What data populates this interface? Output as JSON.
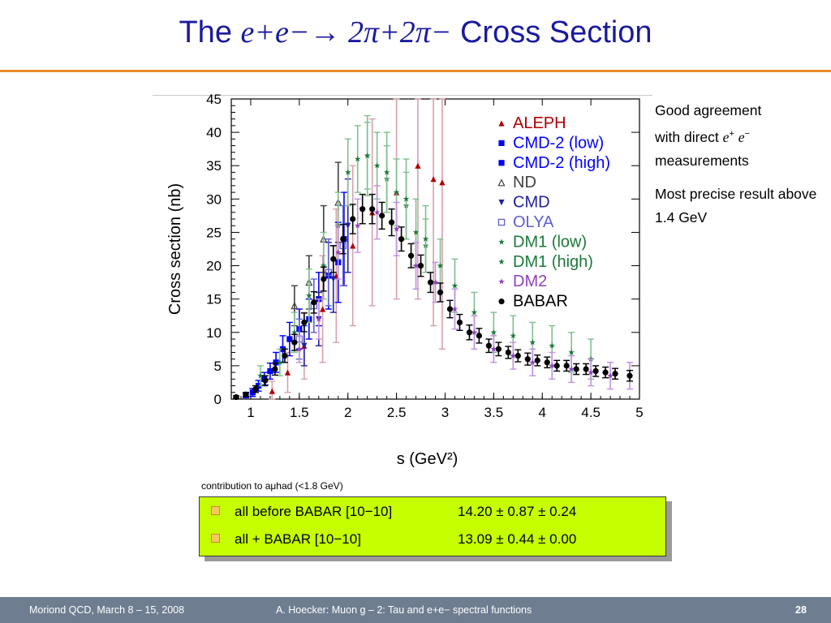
{
  "slide": {
    "title_prefix": "The",
    "title_reaction": "e+e−→ 2π+2π−",
    "title_suffix": "Cross Section",
    "notes": {
      "note1_line1": "Good agreement",
      "note1_line2": "with direct",
      "note1_line3": "measurements",
      "note2": "Most precise result above 1.4 GeV"
    },
    "contribution": {
      "caption": "contribution to aμhad (<1.8 GeV)",
      "rows": [
        {
          "label": "all before BABAR [10−10]",
          "value": "14.20 ± 0.87 ± 0.24"
        },
        {
          "label": "all + BABAR [10−10]",
          "value": "13.09 ± 0.44 ± 0.00"
        }
      ]
    },
    "footer": {
      "left": "Moriond QCD, March 8 – 15, 2008",
      "center": "A. Hoecker: Muon g – 2: Tau and e+e− spectral functions",
      "page": "28"
    },
    "colors": {
      "title": "#1a1a9e",
      "accent_rule": "#e98a2a",
      "box": "#c6ff00",
      "footer_bg": "#6e7d90"
    }
  },
  "chart_data": {
    "type": "scatter",
    "xlabel": "s    (GeV²)",
    "ylabel": "Cross section  (nb)",
    "xlim": [
      0.8,
      5.0
    ],
    "ylim": [
      0,
      45
    ],
    "xticks": [
      "1",
      "1.5",
      "2",
      "2.5",
      "3",
      "3.5",
      "4",
      "4.5",
      "5"
    ],
    "yticks": [
      "0",
      "5",
      "10",
      "15",
      "20",
      "25",
      "30",
      "35",
      "40",
      "45"
    ],
    "legend_position": "top-right",
    "series": [
      {
        "name": "ALEPH",
        "color": "#b00000",
        "marker": "triangle-up",
        "x": [
          1.22,
          1.38,
          1.55,
          1.74,
          1.88,
          2.05,
          2.25,
          2.5,
          2.72,
          2.88,
          2.97
        ],
        "y": [
          1.2,
          4.0,
          8.0,
          13.5,
          18.5,
          23.0,
          28.0,
          31.0,
          35.0,
          33.0,
          32.5
        ],
        "err": [
          1.5,
          3,
          5,
          8,
          10,
          12,
          14,
          16,
          20,
          22,
          25
        ]
      },
      {
        "name": "CMD-2 (low)",
        "color": "#0000ff",
        "marker": "square",
        "x": [
          0.95,
          1.02,
          1.08,
          1.14,
          1.2,
          1.26,
          1.33,
          1.4,
          1.5
        ],
        "y": [
          0.6,
          1.0,
          2.0,
          3.0,
          4.2,
          5.5,
          7.5,
          9.0,
          10.5
        ],
        "err": [
          0.4,
          0.6,
          0.8,
          1.0,
          1.2,
          1.5,
          2,
          2.5,
          3
        ]
      },
      {
        "name": "CMD-2 (high)",
        "color": "#0000ff",
        "marker": "square",
        "x": [
          1.6,
          1.7,
          1.8,
          1.9,
          1.96
        ],
        "y": [
          12.0,
          15.0,
          18.5,
          20.5,
          24.0
        ],
        "err": [
          3,
          4,
          5,
          6,
          7
        ]
      },
      {
        "name": "ND",
        "color": "#404040",
        "marker": "triangle-open",
        "x": [
          1.45,
          1.6,
          1.75,
          1.9
        ],
        "y": [
          14.0,
          17.5,
          24.0,
          29.5
        ],
        "err": [
          3,
          4,
          5,
          6
        ]
      },
      {
        "name": "CMD",
        "color": "#2020a0",
        "marker": "triangle-down",
        "x": [
          1.55,
          1.7,
          1.85,
          2.0
        ],
        "y": [
          8.0,
          12.0,
          18.0,
          26.0
        ],
        "err": [
          3,
          4,
          5,
          7
        ]
      },
      {
        "name": "OLYA",
        "color": "#6060d0",
        "marker": "square-open",
        "x": [
          1.5,
          1.65,
          1.8,
          1.95
        ],
        "y": [
          9.0,
          14.0,
          19.0,
          23.0
        ],
        "err": [
          3,
          4,
          5,
          6
        ]
      },
      {
        "name": "DM1 (low)",
        "color": "#1a7a3a",
        "marker": "star",
        "x": [
          1.1,
          1.3,
          1.45,
          1.6,
          1.75,
          1.9,
          2.0,
          2.1,
          2.2,
          2.3,
          2.4,
          2.5,
          2.6,
          2.7,
          2.8,
          2.95,
          3.1,
          3.3,
          3.5,
          3.7,
          3.9,
          4.1,
          4.3,
          4.5
        ],
        "y": [
          3.5,
          5.5,
          10.0,
          15.5,
          20.0,
          26.0,
          34.0,
          36.0,
          36.5,
          35.0,
          33.0,
          31.0,
          29.0,
          25.0,
          23.0,
          20.0,
          17.0,
          13.0,
          10.0,
          9.5,
          8.5,
          8.0,
          7.0,
          6.0
        ],
        "err": [
          1.5,
          2,
          3,
          4,
          5,
          5,
          5,
          5,
          5,
          5,
          5,
          5,
          5,
          5,
          4,
          4,
          4,
          3,
          3,
          3,
          3,
          3,
          3,
          3
        ]
      },
      {
        "name": "DM1 (high)",
        "color": "#1a7a3a",
        "marker": "star",
        "x": [
          2.2,
          2.4,
          2.6,
          2.8
        ],
        "y": [
          36.5,
          34.0,
          30.0,
          24.0
        ],
        "err": [
          6,
          6,
          6,
          5
        ]
      },
      {
        "name": "DM2",
        "color": "#9040c0",
        "marker": "star",
        "x": [
          1.5,
          1.7,
          1.9,
          2.1,
          2.3,
          2.5,
          2.7,
          2.9,
          3.1,
          3.3,
          3.5,
          3.7,
          3.9,
          4.1,
          4.3,
          4.5,
          4.7,
          4.9
        ],
        "y": [
          7.5,
          12.0,
          22.0,
          26.0,
          28.0,
          25.5,
          20.0,
          17.5,
          13.5,
          10.0,
          7.5,
          6.5,
          5.5,
          5.0,
          4.5,
          4.0,
          3.5,
          3.5
        ],
        "err": [
          2,
          3,
          4,
          4,
          4,
          4,
          3.5,
          3,
          3,
          2.5,
          2,
          2,
          2,
          2,
          2,
          2,
          2,
          2
        ]
      },
      {
        "name": "BABAR",
        "color": "#000000",
        "marker": "circle",
        "x": [
          0.85,
          0.95,
          1.05,
          1.15,
          1.25,
          1.35,
          1.45,
          1.55,
          1.65,
          1.75,
          1.85,
          1.95,
          2.05,
          2.15,
          2.25,
          2.35,
          2.45,
          2.55,
          2.65,
          2.75,
          2.85,
          2.95,
          3.05,
          3.15,
          3.25,
          3.35,
          3.45,
          3.55,
          3.65,
          3.75,
          3.85,
          3.95,
          4.05,
          4.15,
          4.25,
          4.35,
          4.45,
          4.55,
          4.65,
          4.75,
          4.9
        ],
        "y": [
          0.3,
          0.7,
          1.5,
          2.8,
          4.5,
          6.5,
          8.5,
          11.5,
          14.5,
          18.0,
          21.0,
          24.0,
          27.0,
          28.5,
          28.5,
          27.5,
          26.5,
          24.0,
          21.5,
          20.0,
          17.5,
          16.0,
          13.5,
          11.5,
          10.0,
          9.5,
          8.0,
          7.5,
          7.0,
          6.5,
          6.0,
          5.8,
          5.5,
          5.0,
          5.0,
          4.5,
          4.5,
          4.2,
          4.0,
          3.8,
          3.5
        ],
        "err": [
          0.2,
          0.3,
          0.5,
          0.7,
          0.9,
          1.0,
          1.2,
          1.4,
          1.6,
          1.8,
          2.0,
          2.2,
          2.2,
          2.2,
          2.2,
          2.0,
          2.0,
          1.8,
          1.8,
          1.6,
          1.5,
          1.4,
          1.3,
          1.2,
          1.1,
          1.1,
          1.0,
          1.0,
          0.9,
          0.9,
          0.9,
          0.8,
          0.8,
          0.8,
          0.8,
          0.8,
          0.8,
          0.8,
          0.8,
          0.8,
          0.8
        ]
      }
    ]
  }
}
